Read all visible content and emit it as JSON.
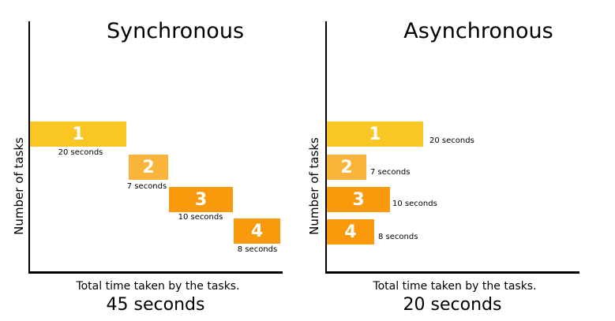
{
  "panels": [
    {
      "title": "Synchronous",
      "ylabel": "Number of tasks",
      "footer": "Total time taken by the tasks.",
      "total": "45 seconds",
      "tasks": [
        {
          "label": "1",
          "duration": "20 seconds",
          "color": "#F9C623"
        },
        {
          "label": "2",
          "duration": "7 seconds",
          "color": "#FBB43A"
        },
        {
          "label": "3",
          "duration": "10 seconds",
          "color": "#F99A0C"
        },
        {
          "label": "4",
          "duration": "8 seconds",
          "color": "#F99A0C"
        }
      ]
    },
    {
      "title": "Asynchronous",
      "ylabel": "Number of tasks",
      "footer": "Total time taken by the tasks.",
      "total": "20 seconds",
      "tasks": [
        {
          "label": "1",
          "duration": "20 seconds",
          "color": "#F9C623"
        },
        {
          "label": "2",
          "duration": "7 seconds",
          "color": "#FBB43A"
        },
        {
          "label": "3",
          "duration": "10 seconds",
          "color": "#F99A0C"
        },
        {
          "label": "4",
          "duration": "8 seconds",
          "color": "#F99A0C"
        }
      ]
    }
  ]
}
